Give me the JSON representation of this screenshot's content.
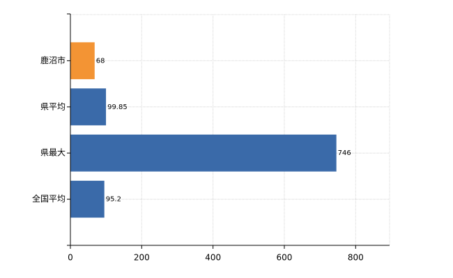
{
  "chart_data": {
    "type": "hbar",
    "categories": [
      "鹿沼市",
      "県平均",
      "県最大",
      "全国平均"
    ],
    "values": [
      68,
      99.85,
      746,
      95.2
    ],
    "colors": [
      "#f39434",
      "#3a6aa9",
      "#3a6aa9",
      "#3a6aa9"
    ],
    "xlim": [
      0,
      895.2
    ],
    "xticks": [
      0,
      200,
      400,
      600,
      800
    ],
    "grid": true,
    "data_labels": true
  }
}
